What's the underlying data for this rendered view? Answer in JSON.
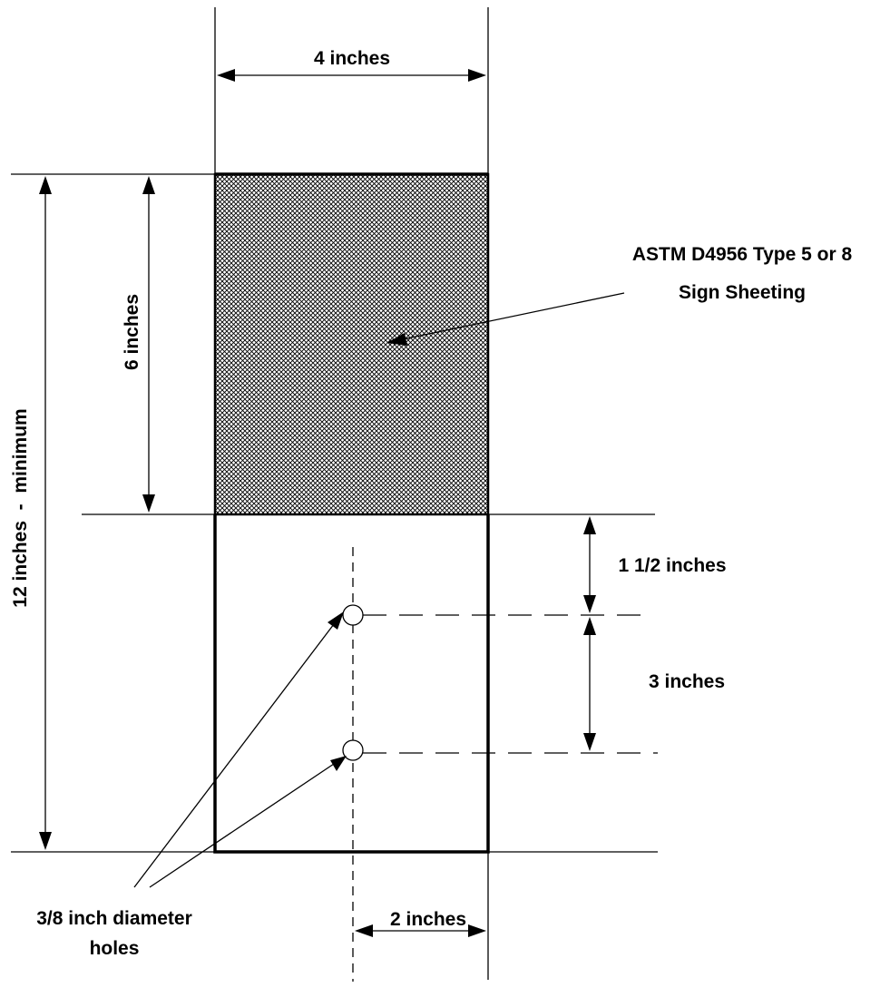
{
  "diagram": {
    "colors": {
      "line": "#000000",
      "sheeting_hatch": "#000000",
      "background": "#ffffff"
    },
    "labels": {
      "width": "4 inches",
      "total_height": "12 inches  -  minimum",
      "sheeting_height": "6 inches",
      "sheeting_spec_line1": "ASTM D4956 Type 5 or 8",
      "sheeting_spec_line2": "Sign Sheeting",
      "top_hole_offset": "1 1/2 inches",
      "hole_spacing": "3 inches",
      "hole_from_edge": "2 inches",
      "holes_line1": "3/8 inch diameter",
      "holes_line2": "holes"
    }
  }
}
